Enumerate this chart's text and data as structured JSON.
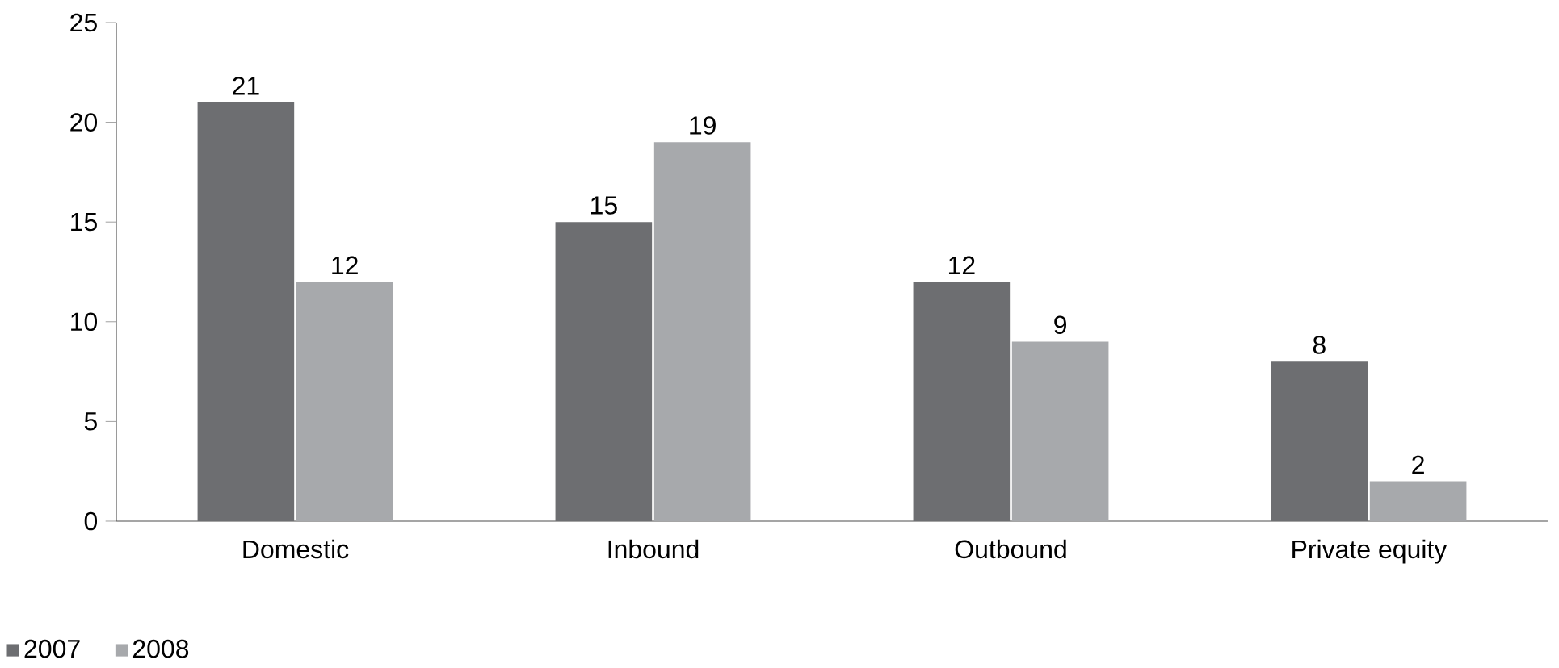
{
  "chart_data": {
    "type": "bar",
    "categories": [
      "Domestic",
      "Inbound",
      "Outbound",
      "Private equity"
    ],
    "series": [
      {
        "name": "2007",
        "color": "#6d6e71",
        "values": [
          21,
          15,
          12,
          8
        ]
      },
      {
        "name": "2008",
        "color": "#a7a9ac",
        "values": [
          12,
          19,
          9,
          2
        ]
      }
    ],
    "ylim": [
      0,
      25
    ],
    "yticks": [
      0,
      5,
      10,
      15,
      20,
      25
    ],
    "data_labels": true,
    "legend": "bottom left",
    "grid": false
  }
}
